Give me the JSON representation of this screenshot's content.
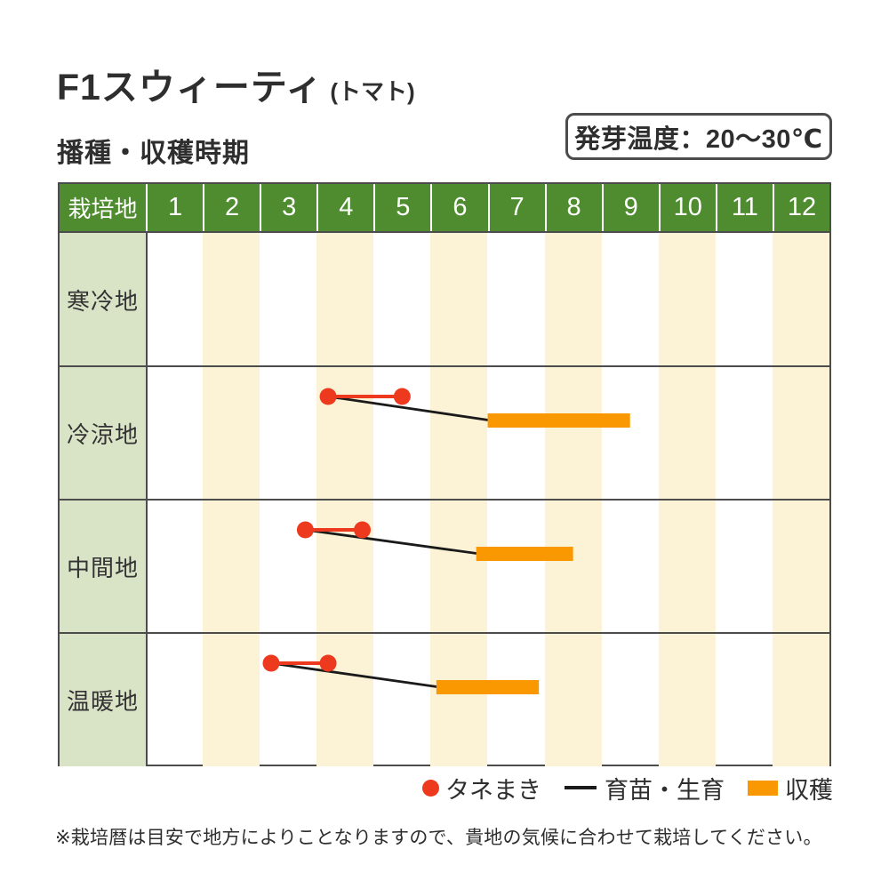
{
  "header": {
    "title": "F1スウィーティ",
    "title_note": "(トマト)",
    "germination_temp": "発芽温度：20〜30℃",
    "section_title": "播種・収穫時期"
  },
  "legend": {
    "sowing": "タネまき",
    "growth": "育苗・生育",
    "harvest": "収穫"
  },
  "footnote": "※栽培暦は目安で地方によりことなりますので、貴地の気候に合わせて栽培してください。",
  "colors": {
    "header_green": "#4e8c2f",
    "label_green": "#d9e3c6",
    "stripe_cream": "#fcf3d6",
    "sowing_red": "#ed3a1f",
    "harvest_orange": "#f99800",
    "growth_line_black": "#1a1a1a"
  },
  "chart_data": {
    "type": "gantt",
    "title": "播種・収穫時期",
    "corner_label": "栽培地",
    "months": [
      "1",
      "2",
      "3",
      "4",
      "5",
      "6",
      "7",
      "8",
      "9",
      "10",
      "11",
      "12"
    ],
    "legend_entries": [
      "タネまき",
      "育苗・生育",
      "収穫"
    ],
    "rows": [
      {
        "region": "寒冷地",
        "sowing_month_span": null,
        "harvest_month_span": null
      },
      {
        "region": "冷涼地",
        "sowing_month_span": [
          4.2,
          5.5
        ],
        "harvest_month_span": [
          7.0,
          9.5
        ]
      },
      {
        "region": "中間地",
        "sowing_month_span": [
          3.8,
          4.8
        ],
        "harvest_month_span": [
          6.8,
          8.5
        ]
      },
      {
        "region": "温暖地",
        "sowing_month_span": [
          3.2,
          4.2
        ],
        "harvest_month_span": [
          6.1,
          7.9
        ]
      }
    ]
  }
}
